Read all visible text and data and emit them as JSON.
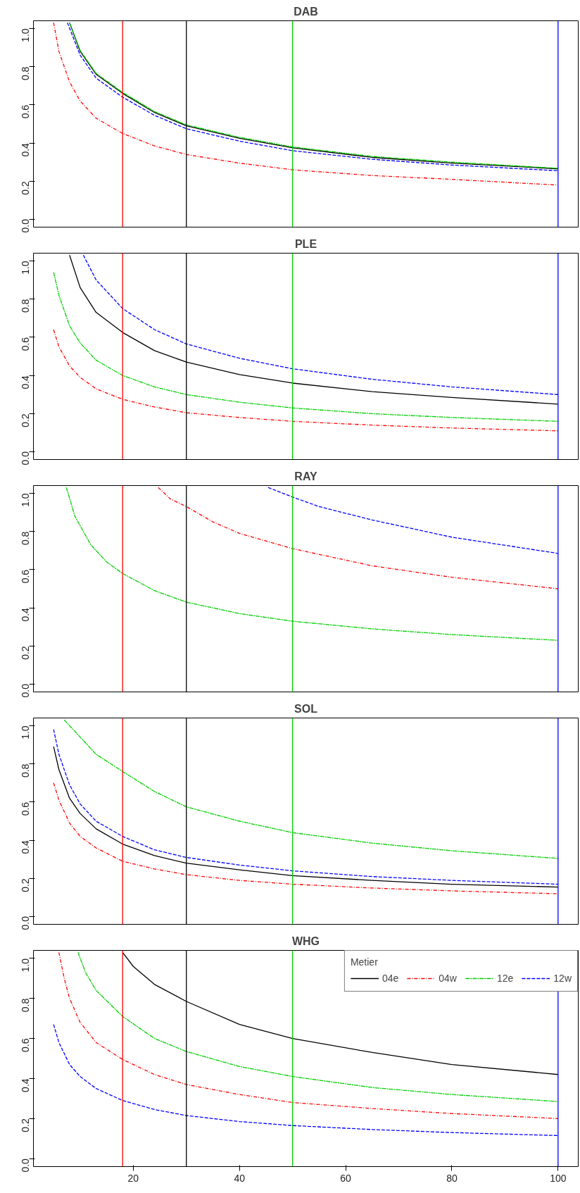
{
  "chart_data": [
    {
      "type": "line",
      "title": "DAB",
      "xlim": [
        1.2,
        103.8
      ],
      "ylim": [
        -0.04,
        1.04
      ],
      "yticks": [
        {
          "value": 0,
          "label": "0.0"
        },
        {
          "value": 0.2,
          "label": "0.2"
        },
        {
          "value": 0.4,
          "label": "0.4"
        },
        {
          "value": 0.6,
          "label": "0.6"
        },
        {
          "value": 0.8,
          "label": "0.8"
        },
        {
          "value": 1,
          "label": "1.0"
        }
      ],
      "tick_labels": "y",
      "grid": false,
      "legend": false,
      "marker": "none",
      "ref_lines": [
        {
          "axis": "x",
          "value": 18,
          "color": "#ff0000"
        },
        {
          "axis": "x",
          "value": 30,
          "color": "#000000"
        },
        {
          "axis": "x",
          "value": 50,
          "color": "#00cd00"
        },
        {
          "axis": "x",
          "value": 100,
          "color": "#0000ff"
        }
      ],
      "series": [
        {
          "color": "#000000",
          "line_style": "solid",
          "x": [
            8,
            10,
            13,
            18,
            24,
            30,
            40,
            50,
            65,
            80,
            100
          ],
          "values": [
            1.03,
            0.88,
            0.76,
            0.66,
            0.56,
            0.49,
            0.425,
            0.375,
            0.325,
            0.295,
            0.265
          ]
        },
        {
          "color": "#ff0000",
          "line_style": "dashdot",
          "x": [
            5,
            6,
            8,
            10,
            13,
            18,
            24,
            30,
            40,
            50,
            65,
            80,
            100
          ],
          "values": [
            1.03,
            0.88,
            0.72,
            0.62,
            0.53,
            0.45,
            0.385,
            0.34,
            0.295,
            0.26,
            0.23,
            0.21,
            0.18
          ]
        },
        {
          "color": "#00cd00",
          "line_style": "longdashdot",
          "x": [
            8,
            10,
            13,
            18,
            24,
            30,
            40,
            50,
            65,
            80,
            100
          ],
          "values": [
            1.03,
            0.885,
            0.765,
            0.665,
            0.565,
            0.495,
            0.43,
            0.38,
            0.33,
            0.3,
            0.268
          ]
        },
        {
          "color": "#0000ff",
          "line_style": "dashed",
          "x": [
            7.6,
            10,
            13,
            18,
            24,
            30,
            40,
            50,
            65,
            80,
            100
          ],
          "values": [
            1.03,
            0.86,
            0.74,
            0.64,
            0.545,
            0.475,
            0.41,
            0.36,
            0.315,
            0.285,
            0.255
          ]
        }
      ]
    },
    {
      "type": "line",
      "title": "PLE",
      "xlim": [
        1.2,
        103.8
      ],
      "ylim": [
        -0.04,
        1.04
      ],
      "yticks": [
        {
          "value": 0,
          "label": "0.0"
        },
        {
          "value": 0.2,
          "label": "0.2"
        },
        {
          "value": 0.4,
          "label": "0.4"
        },
        {
          "value": 0.6,
          "label": "0.6"
        },
        {
          "value": 0.8,
          "label": "0.8"
        },
        {
          "value": 1,
          "label": "1.0"
        }
      ],
      "tick_labels": "y",
      "grid": false,
      "legend": false,
      "marker": "none",
      "ref_lines": [
        {
          "axis": "x",
          "value": 18,
          "color": "#ff0000"
        },
        {
          "axis": "x",
          "value": 30,
          "color": "#000000"
        },
        {
          "axis": "x",
          "value": 50,
          "color": "#00cd00"
        },
        {
          "axis": "x",
          "value": 100,
          "color": "#0000ff"
        }
      ],
      "series": [
        {
          "color": "#000000",
          "line_style": "solid",
          "x": [
            8,
            10,
            13,
            18,
            24,
            30,
            40,
            50,
            65,
            80,
            100
          ],
          "values": [
            1.03,
            0.86,
            0.73,
            0.625,
            0.53,
            0.47,
            0.405,
            0.36,
            0.315,
            0.285,
            0.25
          ]
        },
        {
          "color": "#ff0000",
          "line_style": "dashdot",
          "x": [
            5,
            6,
            8,
            10,
            13,
            18,
            24,
            30,
            40,
            50,
            65,
            80,
            100
          ],
          "values": [
            0.64,
            0.55,
            0.45,
            0.39,
            0.33,
            0.275,
            0.235,
            0.205,
            0.18,
            0.16,
            0.14,
            0.125,
            0.11
          ]
        },
        {
          "color": "#00cd00",
          "line_style": "longdashdot",
          "x": [
            5,
            6,
            8,
            10,
            13,
            18,
            24,
            30,
            40,
            50,
            65,
            80,
            100
          ],
          "values": [
            0.94,
            0.82,
            0.66,
            0.57,
            0.48,
            0.4,
            0.34,
            0.3,
            0.26,
            0.23,
            0.2,
            0.18,
            0.16
          ]
        },
        {
          "color": "#0000ff",
          "line_style": "dashed",
          "x": [
            10.6,
            13,
            18,
            24,
            30,
            40,
            50,
            65,
            80,
            100
          ],
          "values": [
            1.03,
            0.9,
            0.75,
            0.64,
            0.565,
            0.49,
            0.435,
            0.38,
            0.34,
            0.3
          ]
        }
      ]
    },
    {
      "type": "line",
      "title": "RAY",
      "xlim": [
        1.2,
        103.8
      ],
      "ylim": [
        -0.04,
        1.04
      ],
      "yticks": [
        {
          "value": 0,
          "label": "0.0"
        },
        {
          "value": 0.2,
          "label": "0.2"
        },
        {
          "value": 0.4,
          "label": "0.4"
        },
        {
          "value": 0.6,
          "label": "0.6"
        },
        {
          "value": 0.8,
          "label": "0.8"
        },
        {
          "value": 1,
          "label": "1.0"
        }
      ],
      "tick_labels": "y",
      "grid": false,
      "legend": false,
      "marker": "none",
      "ref_lines": [
        {
          "axis": "x",
          "value": 18,
          "color": "#ff0000"
        },
        {
          "axis": "x",
          "value": 30,
          "color": "#000000"
        },
        {
          "axis": "x",
          "value": 50,
          "color": "#00cd00"
        },
        {
          "axis": "x",
          "value": 100,
          "color": "#0000ff"
        }
      ],
      "series": [
        {
          "color": "#ff0000",
          "line_style": "dashdot",
          "x": [
            24.7,
            27,
            30,
            35,
            40,
            50,
            65,
            80,
            100
          ],
          "values": [
            1.03,
            0.97,
            0.93,
            0.85,
            0.79,
            0.71,
            0.62,
            0.56,
            0.5
          ]
        },
        {
          "color": "#00cd00",
          "line_style": "longdashdot",
          "x": [
            7.4,
            9,
            12,
            15,
            18,
            24,
            30,
            40,
            50,
            65,
            80,
            100
          ],
          "values": [
            1.03,
            0.88,
            0.73,
            0.64,
            0.58,
            0.49,
            0.43,
            0.37,
            0.33,
            0.29,
            0.26,
            0.23
          ]
        },
        {
          "color": "#0000ff",
          "line_style": "dashed",
          "x": [
            45.4,
            50,
            55,
            65,
            80,
            100
          ],
          "values": [
            1.03,
            0.98,
            0.93,
            0.86,
            0.77,
            0.685
          ]
        }
      ]
    },
    {
      "type": "line",
      "title": "SOL",
      "xlim": [
        1.2,
        103.8
      ],
      "ylim": [
        -0.04,
        1.04
      ],
      "yticks": [
        {
          "value": 0,
          "label": "0.0"
        },
        {
          "value": 0.2,
          "label": "0.2"
        },
        {
          "value": 0.4,
          "label": "0.4"
        },
        {
          "value": 0.6,
          "label": "0.6"
        },
        {
          "value": 0.8,
          "label": "0.8"
        },
        {
          "value": 1,
          "label": "1.0"
        }
      ],
      "tick_labels": "y",
      "grid": false,
      "legend": false,
      "marker": "none",
      "ref_lines": [
        {
          "axis": "x",
          "value": 18,
          "color": "#ff0000"
        },
        {
          "axis": "x",
          "value": 30,
          "color": "#000000"
        },
        {
          "axis": "x",
          "value": 50,
          "color": "#00cd00"
        },
        {
          "axis": "x",
          "value": 100,
          "color": "#0000ff"
        }
      ],
      "series": [
        {
          "color": "#000000",
          "line_style": "solid",
          "x": [
            5,
            6,
            8,
            10,
            13,
            18,
            24,
            30,
            40,
            50,
            65,
            80,
            100
          ],
          "values": [
            0.89,
            0.77,
            0.62,
            0.54,
            0.46,
            0.38,
            0.32,
            0.28,
            0.245,
            0.215,
            0.19,
            0.17,
            0.155
          ]
        },
        {
          "color": "#ff0000",
          "line_style": "dashdot",
          "x": [
            5,
            6,
            8,
            10,
            13,
            18,
            24,
            30,
            40,
            50,
            65,
            80,
            100
          ],
          "values": [
            0.7,
            0.61,
            0.49,
            0.42,
            0.36,
            0.29,
            0.25,
            0.22,
            0.19,
            0.17,
            0.15,
            0.135,
            0.12
          ]
        },
        {
          "color": "#00cd00",
          "line_style": "longdashdot",
          "x": [
            7,
            8,
            10,
            13,
            18,
            24,
            30,
            40,
            50,
            65,
            80,
            100
          ],
          "values": [
            1.03,
            1.0,
            0.94,
            0.85,
            0.76,
            0.655,
            0.575,
            0.5,
            0.44,
            0.385,
            0.345,
            0.305
          ]
        },
        {
          "color": "#0000ff",
          "line_style": "dashed",
          "x": [
            5,
            6,
            8,
            10,
            13,
            18,
            24,
            30,
            40,
            50,
            65,
            80,
            100
          ],
          "values": [
            0.98,
            0.85,
            0.69,
            0.59,
            0.5,
            0.42,
            0.35,
            0.31,
            0.27,
            0.24,
            0.21,
            0.19,
            0.17
          ]
        }
      ]
    },
    {
      "type": "line",
      "title": "WHG",
      "xlim": [
        1.2,
        103.8
      ],
      "ylim": [
        -0.04,
        1.04
      ],
      "xticks": [
        20,
        40,
        60,
        80,
        100
      ],
      "yticks": [
        {
          "value": 0,
          "label": "0.0"
        },
        {
          "value": 0.2,
          "label": "0.2"
        },
        {
          "value": 0.4,
          "label": "0.4"
        },
        {
          "value": 0.6,
          "label": "0.6"
        },
        {
          "value": 0.8,
          "label": "0.8"
        },
        {
          "value": 1,
          "label": "1.0"
        }
      ],
      "grid": false,
      "legend": "top right",
      "legend_title": "Metier",
      "marker": "none",
      "ref_lines": [
        {
          "axis": "x",
          "value": 18,
          "color": "#ff0000"
        },
        {
          "axis": "x",
          "value": 30,
          "color": "#000000"
        },
        {
          "axis": "x",
          "value": 50,
          "color": "#00cd00"
        },
        {
          "axis": "x",
          "value": 100,
          "color": "#0000ff"
        }
      ],
      "series": [
        {
          "name": "04e",
          "color": "#000000",
          "line_style": "solid",
          "x": [
            18,
            20,
            24,
            30,
            40,
            50,
            65,
            80,
            100
          ],
          "values": [
            1.03,
            0.96,
            0.87,
            0.785,
            0.67,
            0.6,
            0.53,
            0.47,
            0.42
          ]
        },
        {
          "name": "04w",
          "color": "#ff0000",
          "line_style": "dashdot",
          "x": [
            6,
            7,
            8,
            10,
            13,
            18,
            24,
            30,
            40,
            50,
            65,
            80,
            100
          ],
          "values": [
            1.03,
            0.9,
            0.8,
            0.68,
            0.58,
            0.495,
            0.42,
            0.37,
            0.32,
            0.28,
            0.25,
            0.225,
            0.2
          ]
        },
        {
          "name": "12e",
          "color": "#00cd00",
          "line_style": "longdashdot",
          "x": [
            9.6,
            11,
            13,
            18,
            24,
            30,
            40,
            50,
            65,
            80,
            100
          ],
          "values": [
            1.03,
            0.93,
            0.84,
            0.71,
            0.6,
            0.535,
            0.46,
            0.41,
            0.355,
            0.32,
            0.285
          ]
        },
        {
          "name": "12w",
          "color": "#0000ff",
          "line_style": "dashed",
          "x": [
            5,
            6,
            8,
            10,
            13,
            18,
            24,
            30,
            40,
            50,
            65,
            80,
            100
          ],
          "values": [
            0.67,
            0.58,
            0.47,
            0.41,
            0.35,
            0.29,
            0.245,
            0.215,
            0.185,
            0.165,
            0.145,
            0.13,
            0.115
          ]
        }
      ]
    }
  ]
}
